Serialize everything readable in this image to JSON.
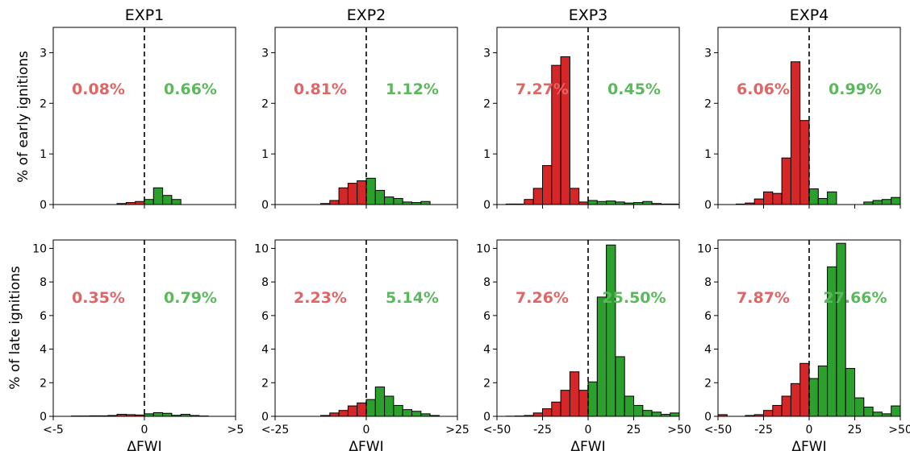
{
  "colors": {
    "decrease": "#d62728",
    "increase": "#2ca02c",
    "left_pct": "#e06666",
    "right_pct": "#5cb85c",
    "edge": "#000000"
  },
  "row_labels": [
    "% of early ignitions",
    "% of late ignitions"
  ],
  "xlabel": "ΔFWI",
  "chart_data": [
    {
      "type": "bar",
      "column": "EXP1",
      "row": "early",
      "title": "EXP1",
      "ylabel": "% of early ignitions",
      "xlim": [
        -5,
        5
      ],
      "ylim": [
        0,
        3.5
      ],
      "yticks": [
        "0",
        "1",
        "2",
        "3"
      ],
      "xticks": [],
      "left_pct": "0.08%",
      "right_pct": "0.66%",
      "bars": [
        [
          -1.5,
          -1,
          0.02
        ],
        [
          -1,
          -0.5,
          0.04
        ],
        [
          -0.5,
          0,
          0.06
        ],
        [
          0,
          0.5,
          0.1
        ],
        [
          0.5,
          1,
          0.33
        ],
        [
          1,
          1.5,
          0.18
        ],
        [
          1.5,
          2,
          0.1
        ]
      ]
    },
    {
      "type": "bar",
      "column": "EXP2",
      "row": "early",
      "title": "EXP2",
      "xlim": [
        -25,
        25
      ],
      "ylim": [
        0,
        3.5
      ],
      "yticks": [
        "0",
        "1",
        "2",
        "3"
      ],
      "xticks": [],
      "left_pct": "0.81%",
      "right_pct": "1.12%",
      "bars": [
        [
          -12.5,
          -10,
          0.02
        ],
        [
          -10,
          -7.5,
          0.08
        ],
        [
          -7.5,
          -5,
          0.33
        ],
        [
          -5,
          -2.5,
          0.42
        ],
        [
          -2.5,
          0,
          0.47
        ],
        [
          0,
          2.5,
          0.52
        ],
        [
          2.5,
          5,
          0.28
        ],
        [
          5,
          7.5,
          0.15
        ],
        [
          7.5,
          10,
          0.12
        ],
        [
          10,
          12.5,
          0.05
        ],
        [
          12.5,
          15,
          0.04
        ],
        [
          15,
          17.5,
          0.06
        ]
      ]
    },
    {
      "type": "bar",
      "column": "EXP3",
      "row": "early",
      "title": "EXP3",
      "xlim": [
        -50,
        50
      ],
      "ylim": [
        0,
        3.5
      ],
      "yticks": [
        "0",
        "1",
        "2",
        "3"
      ],
      "xticks": [],
      "left_pct": "7.27%",
      "right_pct": "0.45%",
      "bars": [
        [
          -45,
          -40,
          0.01
        ],
        [
          -40,
          -35,
          0.01
        ],
        [
          -35,
          -30,
          0.1
        ],
        [
          -30,
          -25,
          0.32
        ],
        [
          -25,
          -20,
          0.77
        ],
        [
          -20,
          -15,
          2.75
        ],
        [
          -15,
          -10,
          2.92
        ],
        [
          -10,
          -5,
          0.32
        ],
        [
          -5,
          0,
          0.05
        ],
        [
          0,
          5,
          0.08
        ],
        [
          5,
          10,
          0.06
        ],
        [
          10,
          15,
          0.07
        ],
        [
          15,
          20,
          0.05
        ],
        [
          20,
          25,
          0.03
        ],
        [
          25,
          30,
          0.04
        ],
        [
          30,
          35,
          0.06
        ],
        [
          35,
          40,
          0.02
        ],
        [
          40,
          45,
          0.01
        ],
        [
          45,
          50,
          0.01
        ]
      ]
    },
    {
      "type": "bar",
      "column": "EXP4",
      "row": "early",
      "title": "EXP4",
      "xlim": [
        -50,
        50
      ],
      "ylim": [
        0,
        3.5
      ],
      "yticks": [
        "0",
        "1",
        "2",
        "3"
      ],
      "xticks": [],
      "left_pct": "6.06%",
      "right_pct": "0.99%",
      "bars": [
        [
          -40,
          -35,
          0.01
        ],
        [
          -35,
          -30,
          0.03
        ],
        [
          -30,
          -25,
          0.11
        ],
        [
          -25,
          -20,
          0.25
        ],
        [
          -20,
          -15,
          0.22
        ],
        [
          -15,
          -10,
          0.92
        ],
        [
          -10,
          -5,
          2.82
        ],
        [
          -5,
          0,
          1.66
        ],
        [
          0,
          5,
          0.31
        ],
        [
          5,
          10,
          0.12
        ],
        [
          10,
          15,
          0.25
        ],
        [
          30,
          35,
          0.05
        ],
        [
          35,
          40,
          0.08
        ],
        [
          40,
          45,
          0.1
        ],
        [
          45,
          50,
          0.14
        ]
      ]
    },
    {
      "type": "bar",
      "column": "EXP1",
      "row": "late",
      "ylabel": "% of late ignitions",
      "xlim": [
        -5,
        5
      ],
      "ylim": [
        0,
        10.5
      ],
      "yticks": [
        "0",
        "2",
        "4",
        "6",
        "8",
        "10"
      ],
      "xticks": [
        "<-5",
        "0",
        ">5"
      ],
      "left_pct": "0.35%",
      "right_pct": "0.79%",
      "bars": [
        [
          -4,
          -3.5,
          0.02
        ],
        [
          -3.5,
          -3,
          0.02
        ],
        [
          -3,
          -2.5,
          0.03
        ],
        [
          -2.5,
          -2,
          0.03
        ],
        [
          -2,
          -1.5,
          0.05
        ],
        [
          -1.5,
          -1,
          0.12
        ],
        [
          -1,
          -0.5,
          0.1
        ],
        [
          -0.5,
          0,
          0.08
        ],
        [
          0,
          0.5,
          0.15
        ],
        [
          0.5,
          1,
          0.22
        ],
        [
          1,
          1.5,
          0.18
        ],
        [
          1.5,
          2,
          0.06
        ],
        [
          2,
          2.5,
          0.12
        ],
        [
          2.5,
          3,
          0.05
        ],
        [
          3,
          3.5,
          0.02
        ]
      ]
    },
    {
      "type": "bar",
      "column": "EXP2",
      "row": "late",
      "xlim": [
        -25,
        25
      ],
      "ylim": [
        0,
        10.5
      ],
      "yticks": [
        "0",
        "2",
        "4",
        "6",
        "8",
        "10"
      ],
      "xticks": [
        "<-25",
        "0",
        ">25"
      ],
      "left_pct": "2.23%",
      "right_pct": "5.14%",
      "bars": [
        [
          -12.5,
          -10,
          0.05
        ],
        [
          -10,
          -7.5,
          0.2
        ],
        [
          -7.5,
          -5,
          0.35
        ],
        [
          -5,
          -2.5,
          0.62
        ],
        [
          -2.5,
          0,
          0.8
        ],
        [
          0,
          2.5,
          1.0
        ],
        [
          2.5,
          5,
          1.75
        ],
        [
          5,
          7.5,
          1.2
        ],
        [
          7.5,
          10,
          0.65
        ],
        [
          10,
          12.5,
          0.4
        ],
        [
          12.5,
          15,
          0.3
        ],
        [
          15,
          17.5,
          0.15
        ],
        [
          17.5,
          20,
          0.05
        ]
      ]
    },
    {
      "type": "bar",
      "column": "EXP3",
      "row": "late",
      "xlim": [
        -50,
        50
      ],
      "ylim": [
        0,
        10.5
      ],
      "yticks": [
        "0",
        "2",
        "4",
        "6",
        "8",
        "10"
      ],
      "xticks": [
        "<-50",
        "-25",
        "0",
        "25",
        ">50"
      ],
      "left_pct": "7.26%",
      "right_pct": "25.50%",
      "bars": [
        [
          -45,
          -40,
          0.01
        ],
        [
          -40,
          -35,
          0.02
        ],
        [
          -35,
          -30,
          0.05
        ],
        [
          -30,
          -25,
          0.2
        ],
        [
          -25,
          -20,
          0.45
        ],
        [
          -20,
          -15,
          0.85
        ],
        [
          -15,
          -10,
          1.55
        ],
        [
          -10,
          -5,
          2.65
        ],
        [
          -5,
          0,
          1.55
        ],
        [
          0,
          5,
          2.05
        ],
        [
          5,
          10,
          7.1
        ],
        [
          10,
          15,
          10.2
        ],
        [
          15,
          20,
          3.55
        ],
        [
          20,
          25,
          1.2
        ],
        [
          25,
          30,
          0.65
        ],
        [
          30,
          35,
          0.35
        ],
        [
          35,
          40,
          0.25
        ],
        [
          40,
          45,
          0.12
        ],
        [
          45,
          50,
          0.2
        ]
      ]
    },
    {
      "type": "bar",
      "column": "EXP4",
      "row": "late",
      "xlim": [
        -50,
        50
      ],
      "ylim": [
        0,
        10.5
      ],
      "yticks": [
        "0",
        "2",
        "4",
        "6",
        "8",
        "10"
      ],
      "xticks": [
        "<-50",
        "-25",
        "0",
        "25",
        ">50"
      ],
      "left_pct": "7.87%",
      "right_pct": "27.66%",
      "bars": [
        [
          -50,
          -45,
          0.1
        ],
        [
          -35,
          -30,
          0.05
        ],
        [
          -30,
          -25,
          0.1
        ],
        [
          -25,
          -20,
          0.35
        ],
        [
          -20,
          -15,
          0.65
        ],
        [
          -15,
          -10,
          1.2
        ],
        [
          -10,
          -5,
          1.95
        ],
        [
          -5,
          0,
          3.15
        ],
        [
          0,
          5,
          2.25
        ],
        [
          5,
          10,
          3.0
        ],
        [
          10,
          15,
          8.9
        ],
        [
          15,
          20,
          10.3
        ],
        [
          20,
          25,
          2.85
        ],
        [
          25,
          30,
          1.1
        ],
        [
          30,
          35,
          0.55
        ],
        [
          35,
          40,
          0.25
        ],
        [
          40,
          45,
          0.15
        ],
        [
          45,
          50,
          0.62
        ]
      ]
    }
  ]
}
